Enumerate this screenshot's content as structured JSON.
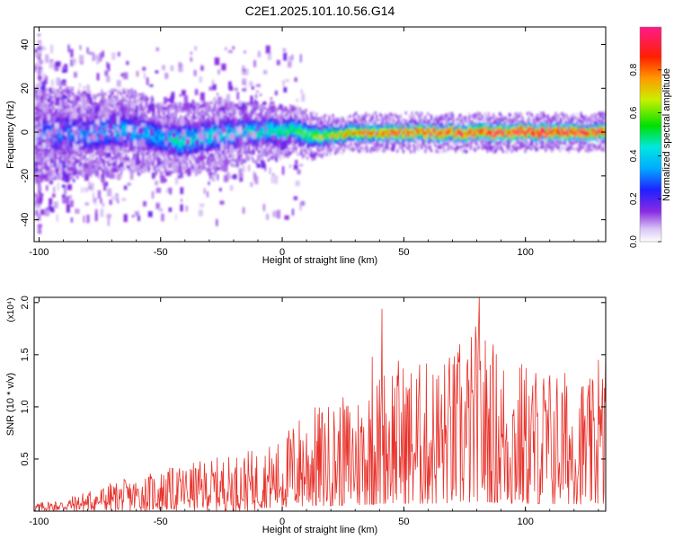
{
  "figure": {
    "title": "C2E1.2025.101.10.56.G14"
  },
  "chart_data": [
    {
      "type": "heatmap",
      "xlabel": "Height of straight line (km)",
      "ylabel": "Frequency (Hz)",
      "xlim": [
        -102,
        133
      ],
      "ylim": [
        -50,
        48
      ],
      "x_ticks": [
        "-100",
        "-50",
        "0",
        "50",
        "100"
      ],
      "x_tick_values": [
        -100,
        -50,
        0,
        50,
        100
      ],
      "y_ticks": [
        "40",
        "20",
        "0",
        "-20",
        "-40"
      ],
      "y_tick_values": [
        40,
        20,
        0,
        -20,
        -40
      ],
      "grid": false,
      "colorbar": {
        "label": "Normalized spectral amplitude",
        "range": [
          0,
          1
        ],
        "ticks": [
          "0.0",
          "0.2",
          "0.4",
          "0.6",
          "0.8"
        ],
        "tick_values": [
          0,
          0.2,
          0.4,
          0.6,
          0.8
        ],
        "colormap": "rainbow (purple-blue-cyan-green-yellow-orange-red-pink)"
      },
      "ridge": {
        "description": "dominant frequency band near 0 Hz",
        "x": [
          -100,
          -90,
          -80,
          -70,
          -60,
          -50,
          -42,
          -35,
          -25,
          -15,
          -5,
          5,
          12,
          20,
          30,
          40,
          50,
          60,
          70,
          80,
          90,
          100,
          110,
          120,
          133
        ],
        "y": [
          -1,
          0,
          -1,
          1,
          0,
          -2,
          -4,
          -2,
          -1,
          0,
          1,
          1,
          -2,
          -1,
          0,
          0,
          0,
          0,
          0,
          0,
          0,
          0,
          0,
          0,
          0
        ],
        "peak_amplitude": [
          0.3,
          0.3,
          0.32,
          0.35,
          0.35,
          0.35,
          0.45,
          0.4,
          0.4,
          0.42,
          0.45,
          0.5,
          0.55,
          0.65,
          0.75,
          0.8,
          0.85,
          0.85,
          0.88,
          0.9,
          0.92,
          0.95,
          0.92,
          0.9,
          0.9
        ],
        "band_halfwidth": [
          8,
          8,
          7,
          7,
          7,
          6,
          6,
          6,
          6,
          5,
          5,
          4,
          4,
          3,
          3,
          3,
          3,
          3,
          3,
          3,
          3,
          3,
          3,
          3,
          3
        ]
      },
      "features": [
        {
          "x": -100,
          "y_range": [
            -45,
            45
          ],
          "amplitude": 0.1
        },
        {
          "x": -90,
          "y_range": [
            -30,
            30
          ],
          "amplitude": 0.15
        },
        {
          "x": -16,
          "y_range": [
            20,
            32
          ],
          "amplitude": 0.12
        }
      ]
    },
    {
      "type": "line",
      "xlabel": "Height of straight line (km)",
      "ylabel": "SNR (10 * v/v)",
      "y_multiplier": "(x10⁴)",
      "xlim": [
        -102,
        133
      ],
      "ylim": [
        0,
        2.05
      ],
      "x_ticks": [
        "-100",
        "-50",
        "0",
        "50",
        "100"
      ],
      "x_tick_values": [
        -100,
        -50,
        0,
        50,
        100
      ],
      "y_ticks": [
        "2.0",
        "1.5",
        "1.0",
        "0.5"
      ],
      "y_tick_values": [
        2.0,
        1.5,
        1.0,
        0.5
      ],
      "grid": false,
      "series": [
        {
          "color": "#e8332c",
          "envelope_x": [
            -102,
            -90,
            -80,
            -70,
            -60,
            -50,
            -40,
            -30,
            -20,
            -10,
            0,
            5,
            10,
            20,
            30,
            40,
            45,
            50,
            60,
            70,
            75,
            80,
            90,
            100,
            110,
            120,
            125,
            130,
            133
          ],
          "envelope_y": [
            0.08,
            0.12,
            0.2,
            0.28,
            0.33,
            0.4,
            0.45,
            0.5,
            0.55,
            0.6,
            0.7,
            0.9,
            1.0,
            1.05,
            1.15,
            1.35,
            1.55,
            1.45,
            1.45,
            1.55,
            1.6,
            1.85,
            1.55,
            1.45,
            1.4,
            1.35,
            1.3,
            1.25,
            1.55
          ],
          "peaks": [
            {
              "x": 41,
              "y": 1.94
            },
            {
              "x": 81,
              "y": 2.05
            },
            {
              "x": 37,
              "y": 1.48
            },
            {
              "x": 73,
              "y": 1.6
            },
            {
              "x": 130,
              "y": 1.45
            },
            {
              "x": 133,
              "y": 1.55
            }
          ]
        }
      ]
    }
  ]
}
